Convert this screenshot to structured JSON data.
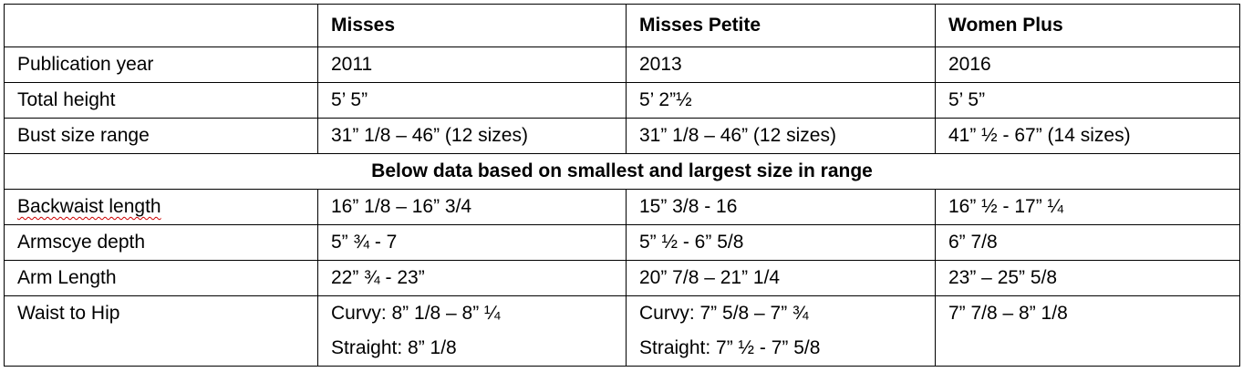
{
  "table": {
    "columns": [
      "Misses",
      "Misses Petite",
      "Women Plus"
    ],
    "rows": [
      {
        "label": "Publication year",
        "cells": [
          "2011",
          "2013",
          "2016"
        ]
      },
      {
        "label": "Total height",
        "cells": [
          "5’ 5”",
          "5’ 2”½",
          "5’ 5”"
        ]
      },
      {
        "label": "Bust size range",
        "cells": [
          "31” 1/8 – 46” (12 sizes)",
          "31” 1/8 – 46” (12 sizes)",
          "41” ½ - 67” (14 sizes)"
        ]
      }
    ],
    "note": "Below data based on smallest and largest size in range",
    "rows_after": [
      {
        "label": "Backwaist length",
        "cells": [
          "16” 1/8 – 16” 3/4",
          "15” 3/8 - 16",
          "16” ½ - 17” ¼"
        ]
      },
      {
        "label": "Armscye depth",
        "cells": [
          "5” ¾ - 7",
          "5” ½ - 6” 5/8",
          "6” 7/8"
        ]
      },
      {
        "label": "Arm Length",
        "cells": [
          "22” ¾ - 23”",
          "20” 7/8 – 21” 1/4",
          "23” – 25” 5/8"
        ]
      },
      {
        "label": "Waist to Hip",
        "cells": [
          [
            "Curvy: 8” 1/8 – 8” ¼",
            "Straight: 8” 1/8"
          ],
          [
            "Curvy: 7” 5/8 – 7” ¾",
            "Straight: 7” ½ - 7” 5/8"
          ],
          [
            "7” 7/8 – 8” 1/8"
          ]
        ]
      }
    ]
  }
}
